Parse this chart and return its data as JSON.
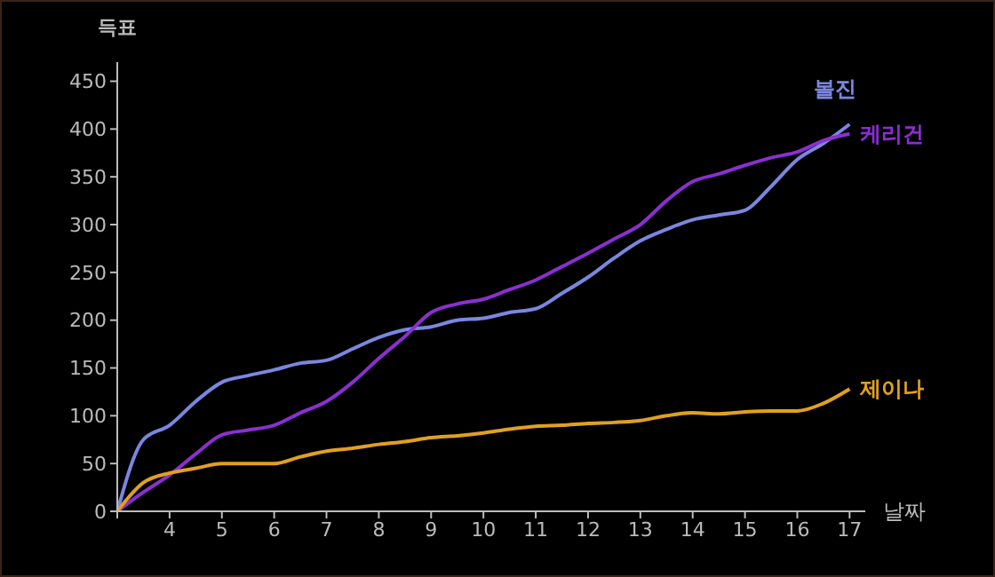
{
  "chart_data": {
    "type": "line",
    "ylabel": "득표",
    "xlabel": "날짜",
    "x": [
      3,
      3.5,
      4,
      4.5,
      5,
      5.5,
      6,
      6.5,
      7,
      7.5,
      8,
      8.5,
      9,
      9.5,
      10,
      10.5,
      11,
      11.5,
      12,
      12.5,
      13,
      13.5,
      14,
      14.5,
      15,
      15.5,
      16,
      16.5,
      17
    ],
    "series": [
      {
        "name": "볼진",
        "color": "#7b86e0",
        "values": [
          0,
          75,
          90,
          115,
          135,
          142,
          148,
          155,
          158,
          170,
          182,
          190,
          193,
          200,
          202,
          208,
          212,
          228,
          245,
          265,
          283,
          295,
          305,
          310,
          315,
          340,
          368,
          385,
          405
        ]
      },
      {
        "name": "케리건",
        "color": "#8a2fd0",
        "values": [
          0,
          20,
          38,
          60,
          80,
          85,
          90,
          103,
          115,
          135,
          160,
          183,
          208,
          217,
          222,
          232,
          242,
          256,
          270,
          285,
          300,
          325,
          345,
          353,
          362,
          370,
          376,
          388,
          395
        ]
      },
      {
        "name": "제이나",
        "color": "#e0a020",
        "values": [
          0,
          30,
          40,
          45,
          50,
          50,
          50,
          57,
          63,
          66,
          70,
          73,
          77,
          79,
          82,
          86,
          89,
          90,
          92,
          93,
          95,
          100,
          103,
          102,
          104,
          105,
          105,
          113,
          128
        ]
      }
    ],
    "xlim": [
      3,
      17.3
    ],
    "xticks": [
      {
        "value": 3,
        "label": null
      },
      4,
      5,
      6,
      7,
      8,
      9,
      10,
      11,
      12,
      13,
      14,
      15,
      16,
      17
    ],
    "ylim": [
      0,
      470
    ],
    "yticks": [
      0,
      50,
      100,
      150,
      200,
      250,
      300,
      350,
      400,
      450
    ],
    "grid": false,
    "legend": false,
    "marker": "none",
    "line_style": "solid"
  }
}
